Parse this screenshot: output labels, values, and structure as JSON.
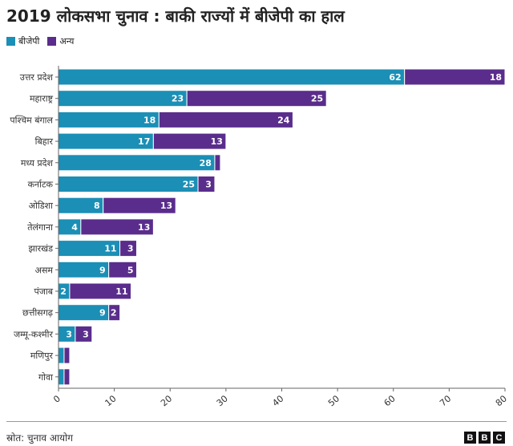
{
  "chart_data": {
    "type": "bar",
    "orientation": "horizontal",
    "stacked": true,
    "title": "2019 लोकसभा चुनाव : बाकी राज्यों में बीजेपी का हाल",
    "categories": [
      "उत्तर प्रदेश",
      "महाराष्ट्र",
      "पश्चिम बंगाल",
      "बिहार",
      "मध्य प्रदेश",
      "कर्नाटक",
      "ओडिशा",
      "तेलंगाना",
      "झारखंड",
      "असम",
      "पंजाब",
      "छत्तीसगढ़",
      "जम्मू-कश्मीर",
      "मणिपुर",
      "गोवा"
    ],
    "series": [
      {
        "name": "बीजेपी",
        "color": "#1b8fb6",
        "values": [
          62,
          23,
          18,
          17,
          28,
          25,
          8,
          4,
          11,
          9,
          2,
          9,
          3,
          1,
          1
        ],
        "labels": [
          true,
          true,
          true,
          true,
          true,
          true,
          true,
          true,
          true,
          true,
          true,
          true,
          true,
          false,
          false
        ]
      },
      {
        "name": "अन्य",
        "color": "#5a2d8c",
        "values": [
          18,
          25,
          24,
          13,
          1,
          3,
          13,
          13,
          3,
          5,
          11,
          2,
          3,
          1,
          1
        ],
        "labels": [
          true,
          true,
          true,
          true,
          false,
          true,
          true,
          true,
          true,
          true,
          true,
          true,
          true,
          false,
          false
        ]
      }
    ],
    "xlim": [
      0,
      80
    ],
    "xticks": [
      0,
      10,
      20,
      30,
      40,
      50,
      60,
      70,
      80
    ],
    "legend": "top-left",
    "grid": false
  },
  "footer": {
    "source": "स्रोत: चुनाव आयोग",
    "logo": "BBC"
  }
}
